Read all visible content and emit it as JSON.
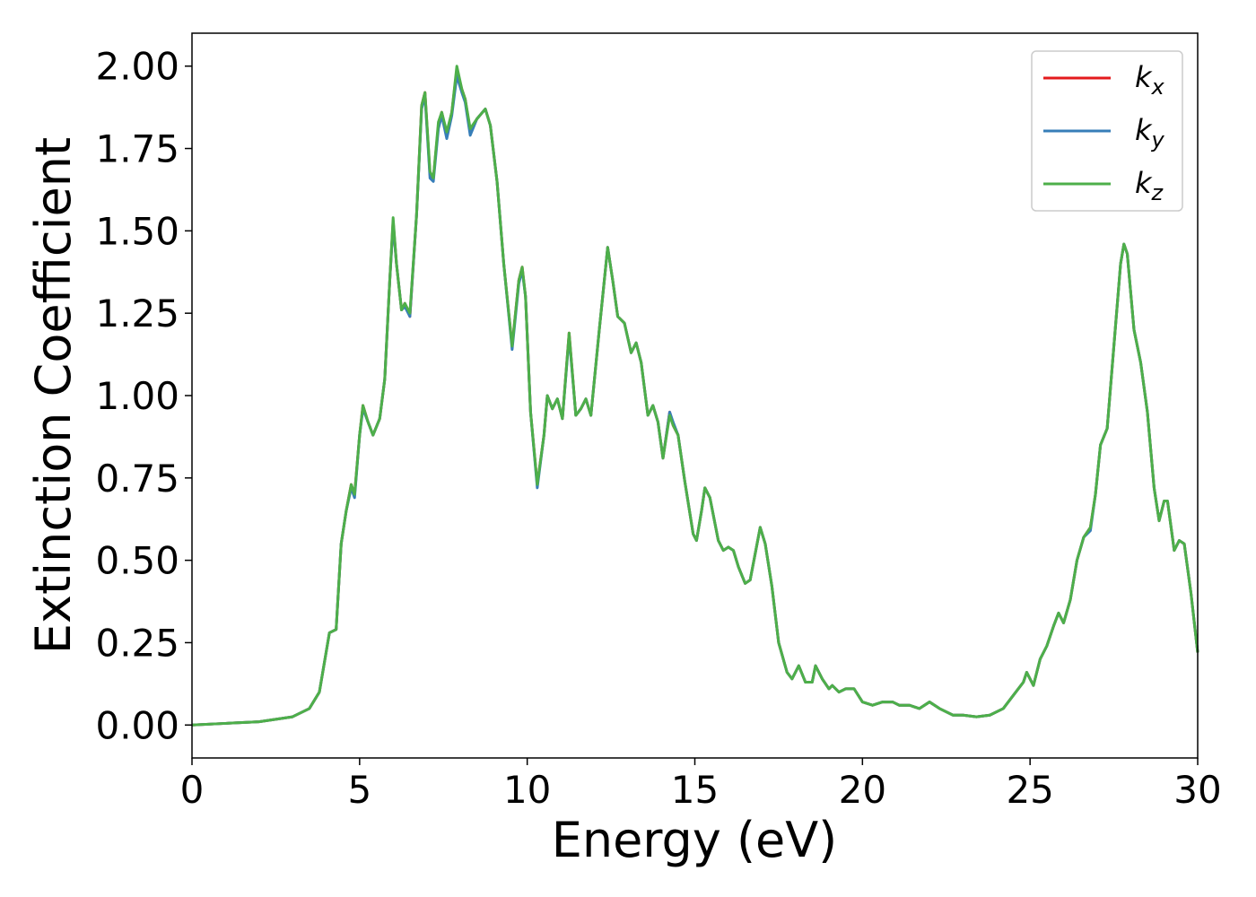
{
  "chart_data": {
    "type": "line",
    "xlabel": "Energy (eV)",
    "ylabel": "Extinction Coefficient",
    "x": [
      0,
      1,
      2,
      3,
      3.5,
      3.8,
      4.0,
      4.1,
      4.3,
      4.45,
      4.6,
      4.75,
      4.85,
      5.0,
      5.1,
      5.25,
      5.4,
      5.6,
      5.75,
      5.9,
      6.0,
      6.1,
      6.25,
      6.35,
      6.5,
      6.7,
      6.85,
      6.95,
      7.1,
      7.2,
      7.35,
      7.45,
      7.6,
      7.75,
      7.9,
      8.05,
      8.15,
      8.3,
      8.5,
      8.75,
      8.9,
      9.1,
      9.3,
      9.55,
      9.75,
      9.85,
      9.95,
      10.1,
      10.3,
      10.5,
      10.6,
      10.75,
      10.9,
      11.05,
      11.25,
      11.45,
      11.6,
      11.75,
      11.9,
      12.15,
      12.4,
      12.55,
      12.7,
      12.9,
      13.1,
      13.25,
      13.4,
      13.6,
      13.75,
      13.9,
      14.05,
      14.25,
      14.35,
      14.5,
      14.7,
      14.95,
      15.05,
      15.2,
      15.3,
      15.45,
      15.7,
      15.85,
      16.0,
      16.15,
      16.3,
      16.5,
      16.65,
      16.8,
      16.95,
      17.1,
      17.3,
      17.5,
      17.75,
      17.9,
      18.1,
      18.3,
      18.5,
      18.6,
      18.8,
      19.0,
      19.1,
      19.3,
      19.5,
      19.75,
      20.0,
      20.3,
      20.6,
      20.9,
      21.1,
      21.4,
      21.7,
      22.0,
      22.3,
      22.7,
      23.0,
      23.4,
      23.8,
      24.2,
      24.5,
      24.8,
      24.9,
      25.1,
      25.3,
      25.5,
      25.7,
      25.85,
      26.0,
      26.2,
      26.4,
      26.6,
      26.8,
      26.95,
      27.1,
      27.3,
      27.5,
      27.7,
      27.8,
      27.9,
      28.1,
      28.3,
      28.5,
      28.7,
      28.85,
      29.0,
      29.1,
      29.3,
      29.45,
      29.6,
      29.8,
      30.0
    ],
    "series": [
      {
        "name": "kx",
        "color": "#e41a1c",
        "values": [
          0,
          0.005,
          0.01,
          0.025,
          0.05,
          0.1,
          0.22,
          0.28,
          0.29,
          0.55,
          0.65,
          0.73,
          0.7,
          0.88,
          0.97,
          0.92,
          0.88,
          0.93,
          1.05,
          1.35,
          1.53,
          1.4,
          1.26,
          1.28,
          1.24,
          1.55,
          1.88,
          1.92,
          1.67,
          1.66,
          1.82,
          1.86,
          1.79,
          1.86,
          1.99,
          1.93,
          1.9,
          1.8,
          1.84,
          1.87,
          1.82,
          1.65,
          1.4,
          1.15,
          1.35,
          1.39,
          1.3,
          0.95,
          0.73,
          0.88,
          1.0,
          0.96,
          0.99,
          0.93,
          1.19,
          0.94,
          0.96,
          0.99,
          0.94,
          1.2,
          1.45,
          1.35,
          1.24,
          1.22,
          1.13,
          1.16,
          1.1,
          0.94,
          0.97,
          0.92,
          0.81,
          0.95,
          0.91,
          0.88,
          0.74,
          0.58,
          0.56,
          0.65,
          0.72,
          0.69,
          0.56,
          0.53,
          0.54,
          0.53,
          0.48,
          0.43,
          0.44,
          0.52,
          0.6,
          0.55,
          0.42,
          0.25,
          0.16,
          0.14,
          0.18,
          0.13,
          0.13,
          0.18,
          0.14,
          0.11,
          0.12,
          0.1,
          0.11,
          0.11,
          0.07,
          0.06,
          0.07,
          0.07,
          0.06,
          0.06,
          0.05,
          0.07,
          0.05,
          0.03,
          0.03,
          0.025,
          0.03,
          0.05,
          0.09,
          0.13,
          0.16,
          0.12,
          0.2,
          0.24,
          0.3,
          0.34,
          0.31,
          0.38,
          0.5,
          0.57,
          0.6,
          0.7,
          0.85,
          0.9,
          1.15,
          1.4,
          1.46,
          1.43,
          1.2,
          1.1,
          0.95,
          0.72,
          0.62,
          0.68,
          0.68,
          0.53,
          0.56,
          0.55,
          0.4,
          0.22
        ]
      },
      {
        "name": "ky",
        "color": "#377eb8",
        "values": [
          0,
          0.005,
          0.01,
          0.025,
          0.05,
          0.1,
          0.22,
          0.28,
          0.29,
          0.55,
          0.65,
          0.72,
          0.69,
          0.88,
          0.96,
          0.92,
          0.88,
          0.93,
          1.05,
          1.35,
          1.52,
          1.4,
          1.26,
          1.27,
          1.24,
          1.55,
          1.87,
          1.91,
          1.66,
          1.65,
          1.81,
          1.85,
          1.78,
          1.85,
          1.97,
          1.92,
          1.89,
          1.79,
          1.84,
          1.87,
          1.82,
          1.65,
          1.4,
          1.14,
          1.34,
          1.38,
          1.3,
          0.95,
          0.72,
          0.88,
          1.0,
          0.96,
          0.99,
          0.93,
          1.18,
          0.94,
          0.96,
          0.99,
          0.94,
          1.2,
          1.45,
          1.35,
          1.24,
          1.22,
          1.13,
          1.16,
          1.1,
          0.94,
          0.97,
          0.92,
          0.81,
          0.95,
          0.92,
          0.88,
          0.74,
          0.58,
          0.56,
          0.65,
          0.72,
          0.69,
          0.56,
          0.53,
          0.54,
          0.53,
          0.48,
          0.43,
          0.44,
          0.52,
          0.6,
          0.55,
          0.42,
          0.25,
          0.16,
          0.14,
          0.18,
          0.13,
          0.13,
          0.18,
          0.14,
          0.11,
          0.12,
          0.1,
          0.11,
          0.11,
          0.07,
          0.06,
          0.07,
          0.07,
          0.06,
          0.06,
          0.05,
          0.07,
          0.05,
          0.03,
          0.03,
          0.025,
          0.03,
          0.05,
          0.09,
          0.13,
          0.16,
          0.12,
          0.2,
          0.24,
          0.3,
          0.34,
          0.31,
          0.38,
          0.5,
          0.57,
          0.59,
          0.7,
          0.85,
          0.9,
          1.15,
          1.4,
          1.46,
          1.43,
          1.2,
          1.1,
          0.95,
          0.72,
          0.62,
          0.68,
          0.68,
          0.53,
          0.56,
          0.55,
          0.4,
          0.22
        ]
      },
      {
        "name": "kz",
        "color": "#4daf4a",
        "values": [
          0,
          0.005,
          0.01,
          0.025,
          0.05,
          0.1,
          0.22,
          0.28,
          0.29,
          0.55,
          0.65,
          0.73,
          0.7,
          0.88,
          0.97,
          0.92,
          0.88,
          0.93,
          1.05,
          1.35,
          1.54,
          1.4,
          1.26,
          1.28,
          1.25,
          1.55,
          1.88,
          1.92,
          1.68,
          1.66,
          1.83,
          1.86,
          1.8,
          1.86,
          2.0,
          1.93,
          1.9,
          1.81,
          1.84,
          1.87,
          1.82,
          1.65,
          1.4,
          1.15,
          1.35,
          1.39,
          1.3,
          0.95,
          0.73,
          0.88,
          1.0,
          0.96,
          0.99,
          0.93,
          1.19,
          0.94,
          0.96,
          0.99,
          0.94,
          1.2,
          1.45,
          1.35,
          1.24,
          1.22,
          1.13,
          1.16,
          1.1,
          0.94,
          0.97,
          0.92,
          0.81,
          0.94,
          0.91,
          0.88,
          0.74,
          0.58,
          0.56,
          0.65,
          0.72,
          0.69,
          0.56,
          0.53,
          0.54,
          0.53,
          0.48,
          0.43,
          0.44,
          0.52,
          0.6,
          0.55,
          0.42,
          0.25,
          0.16,
          0.14,
          0.18,
          0.13,
          0.13,
          0.18,
          0.14,
          0.11,
          0.12,
          0.1,
          0.11,
          0.11,
          0.07,
          0.06,
          0.07,
          0.07,
          0.06,
          0.06,
          0.05,
          0.07,
          0.05,
          0.03,
          0.03,
          0.025,
          0.03,
          0.05,
          0.09,
          0.13,
          0.16,
          0.12,
          0.2,
          0.24,
          0.3,
          0.34,
          0.31,
          0.38,
          0.5,
          0.57,
          0.6,
          0.7,
          0.85,
          0.9,
          1.15,
          1.4,
          1.46,
          1.43,
          1.2,
          1.1,
          0.95,
          0.72,
          0.62,
          0.68,
          0.68,
          0.53,
          0.56,
          0.55,
          0.4,
          0.22
        ]
      }
    ],
    "xlim": [
      0,
      30
    ],
    "xticks": [
      0,
      5,
      10,
      15,
      20,
      25,
      30
    ],
    "ylim": [
      -0.1,
      2.1
    ],
    "yticks": [
      {
        "value": 0,
        "label": "0.00"
      },
      {
        "value": 0.25,
        "label": "0.25"
      },
      {
        "value": 0.5,
        "label": "0.50"
      },
      {
        "value": 0.75,
        "label": "0.75"
      },
      {
        "value": 1,
        "label": "1.00"
      },
      {
        "value": 1.25,
        "label": "1.25"
      },
      {
        "value": 1.5,
        "label": "1.50"
      },
      {
        "value": 1.75,
        "label": "1.75"
      },
      {
        "value": 2,
        "label": "2.00"
      }
    ],
    "legend": "upper right",
    "grid": false
  }
}
